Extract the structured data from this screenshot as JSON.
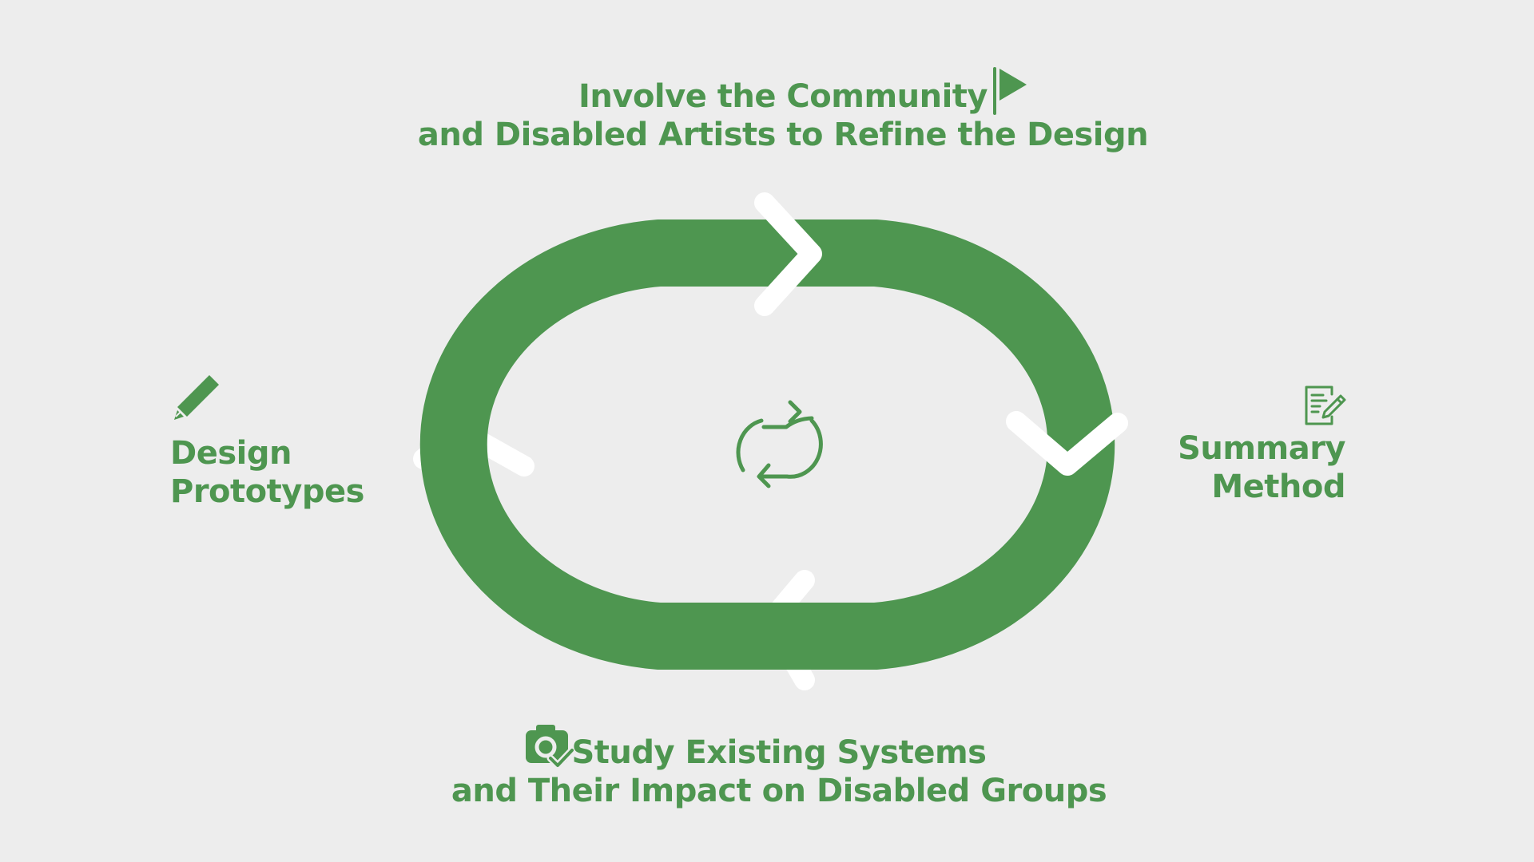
{
  "diagram": {
    "colors": {
      "accent": "#4e9650",
      "background": "#ededed",
      "chevron": "#ffffff"
    },
    "center_icon": "repeat-cycle-icon",
    "steps": {
      "top": {
        "line1": "Involve the Community",
        "line2": "and Disabled Artists to Refine the Design",
        "icon": "flag-icon"
      },
      "right": {
        "line1": "Summary",
        "line2": "Method",
        "icon": "notes-with-pencil-icon"
      },
      "bottom": {
        "line1": "Study Existing Systems",
        "line2": "and Their Impact on Disabled Groups",
        "icon": "camera-check-icon"
      },
      "left": {
        "line1": "Design",
        "line2": "Prototypes",
        "icon": "pencil-icon"
      }
    }
  }
}
